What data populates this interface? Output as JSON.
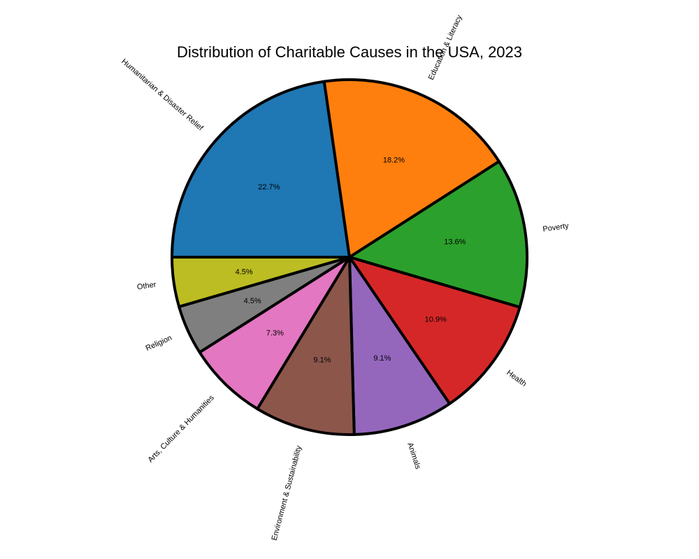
{
  "chart_data": {
    "type": "pie",
    "title": "Distribution of Charitable Causes in the USA, 2023",
    "start_angle_deg": 180,
    "direction": "clockwise",
    "edge_color": "#000000",
    "slices": [
      {
        "label": "Humanitarian & Disaster Relief",
        "value": 22.7,
        "pct_label": "22.7%",
        "color": "#1f77b4"
      },
      {
        "label": "Education & Literacy",
        "value": 18.2,
        "pct_label": "18.2%",
        "color": "#ff7f0e"
      },
      {
        "label": "Poverty",
        "value": 13.6,
        "pct_label": "13.6%",
        "color": "#2ca02c"
      },
      {
        "label": "Health",
        "value": 10.9,
        "pct_label": "10.9%",
        "color": "#d62728"
      },
      {
        "label": "Animals",
        "value": 9.1,
        "pct_label": "9.1%",
        "color": "#9467bd"
      },
      {
        "label": "Environment & Sustainability",
        "value": 9.1,
        "pct_label": "9.1%",
        "color": "#8c564b"
      },
      {
        "label": "Arts, Culture & Humanities",
        "value": 7.3,
        "pct_label": "7.3%",
        "color": "#e377c2"
      },
      {
        "label": "Religion",
        "value": 4.5,
        "pct_label": "4.5%",
        "color": "#7f7f7f"
      },
      {
        "label": "Other",
        "value": 4.5,
        "pct_label": "4.5%",
        "color": "#bcbd22"
      }
    ]
  }
}
